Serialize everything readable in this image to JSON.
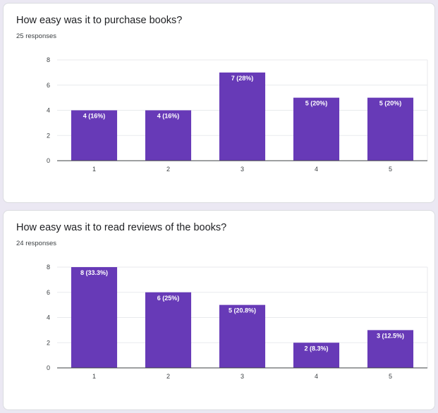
{
  "colors": {
    "bar": "#673ab7",
    "grid": "#e8eaed",
    "axis": "#3c4043",
    "label": "#ffffff"
  },
  "chart_data": [
    {
      "type": "bar",
      "title": "How easy was it to purchase books?",
      "responses": "25 responses",
      "categories": [
        "1",
        "2",
        "3",
        "4",
        "5"
      ],
      "values": [
        4,
        4,
        7,
        5,
        5
      ],
      "data_labels": [
        "4 (16%)",
        "4 (16%)",
        "7 (28%)",
        "5 (20%)",
        "5 (20%)"
      ],
      "yticks": [
        "0",
        "2",
        "4",
        "6",
        "8"
      ],
      "ylim": [
        0,
        8
      ],
      "grid": true,
      "legend": "none"
    },
    {
      "type": "bar",
      "title": "How easy was it to read reviews of the books?",
      "responses": "24 responses",
      "categories": [
        "1",
        "2",
        "3",
        "4",
        "5"
      ],
      "values": [
        8,
        6,
        5,
        2,
        3
      ],
      "data_labels": [
        "8 (33.3%)",
        "6 (25%)",
        "5 (20.8%)",
        "2 (8.3%)",
        "3 (12.5%)"
      ],
      "yticks": [
        "0",
        "2",
        "4",
        "6",
        "8"
      ],
      "ylim": [
        0,
        8
      ],
      "grid": true,
      "legend": "none"
    }
  ]
}
